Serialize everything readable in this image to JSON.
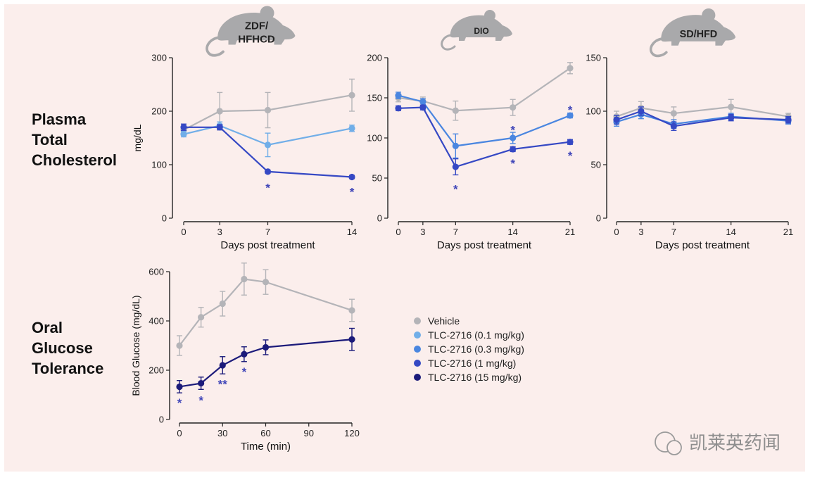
{
  "colors": {
    "vehicle": "#b4b4b8",
    "d01": "#71aee8",
    "d03": "#4a86e0",
    "d1": "#3548c4",
    "d15": "#1b1a7a",
    "star": "#3f45b8",
    "axis": "#222222",
    "mouse": "#a9a9ab",
    "background": "#fbeeec"
  },
  "row_labels": {
    "cholesterol": [
      "Plasma",
      "Total",
      "Cholesterol"
    ],
    "glucose": [
      "Oral",
      "Glucose",
      "Tolerance"
    ]
  },
  "mouse_icons": [
    {
      "label": "ZDF/\nHFHCD"
    },
    {
      "label": "DIO"
    },
    {
      "label": "SD/HFD"
    }
  ],
  "legend": [
    {
      "key": "vehicle",
      "label": "Vehicle"
    },
    {
      "key": "d01",
      "label": "TLC-2716 (0.1 mg/kg)"
    },
    {
      "key": "d03",
      "label": "TLC-2716 (0.3 mg/kg)"
    },
    {
      "key": "d1",
      "label": "TLC-2716 (1 mg/kg)"
    },
    {
      "key": "d15",
      "label": "TLC-2716 (15 mg/kg)"
    }
  ],
  "watermark": {
    "text": "凯莱英药闻"
  },
  "chart_data": [
    {
      "type": "line",
      "id": "zdf",
      "title": "ZDF/HFHCD",
      "xlabel": "Days post treatment",
      "ylabel": "mg/dL",
      "xlim": [
        0,
        14
      ],
      "ylim": [
        0,
        300
      ],
      "xticks": [
        0,
        3,
        7,
        14
      ],
      "yticks": [
        0,
        100,
        200,
        300
      ],
      "series": [
        {
          "key": "vehicle",
          "name": "Vehicle",
          "x": [
            0,
            3,
            7,
            14
          ],
          "y": [
            165,
            200,
            202,
            230
          ],
          "err": [
            10,
            35,
            33,
            30
          ]
        },
        {
          "key": "d01",
          "name": "TLC-2716 (0.1 mg/kg)",
          "x": [
            0,
            3,
            7,
            14
          ],
          "y": [
            157,
            173,
            137,
            168
          ],
          "err": [
            5,
            7,
            22,
            6
          ]
        },
        {
          "key": "d1",
          "name": "TLC-2716 (1 mg/kg)",
          "x": [
            0,
            3,
            7,
            14
          ],
          "y": [
            170,
            170,
            87,
            77
          ],
          "err": [
            6,
            5,
            3,
            3
          ]
        }
      ],
      "annotations": [
        {
          "x": 7,
          "y": 60,
          "text": "*"
        },
        {
          "x": 14,
          "y": 52,
          "text": "*"
        }
      ]
    },
    {
      "type": "line",
      "id": "dio",
      "title": "DIO",
      "xlabel": "Days post treatment",
      "ylabel": "",
      "xlim": [
        0,
        21
      ],
      "ylim": [
        0,
        200
      ],
      "xticks": [
        0,
        3,
        7,
        14,
        21
      ],
      "yticks": [
        0,
        50,
        100,
        150,
        200
      ],
      "series": [
        {
          "key": "vehicle",
          "name": "Vehicle",
          "x": [
            0,
            3,
            7,
            14,
            21
          ],
          "y": [
            150,
            146,
            134,
            138,
            187
          ],
          "err": [
            5,
            5,
            12,
            10,
            7
          ]
        },
        {
          "key": "d03",
          "name": "TLC-2716 (0.3 mg/kg)",
          "x": [
            0,
            3,
            7,
            14,
            21
          ],
          "y": [
            153,
            145,
            90,
            100,
            128
          ],
          "err": [
            4,
            4,
            15,
            7,
            3
          ]
        },
        {
          "key": "d1",
          "name": "TLC-2716 (1 mg/kg)",
          "x": [
            0,
            3,
            7,
            14,
            21
          ],
          "y": [
            137,
            138,
            64,
            86,
            95
          ],
          "err": [
            3,
            3,
            10,
            3,
            3
          ]
        }
      ],
      "annotations": [
        {
          "x": 7,
          "y": 38,
          "text": "*"
        },
        {
          "x": 14,
          "y": 112,
          "text": "*"
        },
        {
          "x": 14,
          "y": 70,
          "text": "*"
        },
        {
          "x": 21,
          "y": 137,
          "text": "*"
        },
        {
          "x": 21,
          "y": 80,
          "text": "*"
        }
      ]
    },
    {
      "type": "line",
      "id": "sd",
      "title": "SD/HFD",
      "xlabel": "Days post treatment",
      "ylabel": "",
      "xlim": [
        0,
        21
      ],
      "ylim": [
        0,
        150
      ],
      "xticks": [
        0,
        3,
        7,
        14,
        21
      ],
      "yticks": [
        0,
        50,
        100,
        150
      ],
      "series": [
        {
          "key": "vehicle",
          "name": "Vehicle",
          "x": [
            0,
            3,
            7,
            14,
            21
          ],
          "y": [
            95,
            103,
            98,
            104,
            95
          ],
          "err": [
            5,
            6,
            6,
            7,
            3
          ]
        },
        {
          "key": "d03",
          "name": "TLC-2716 (0.3 mg/kg)",
          "x": [
            0,
            3,
            7,
            14,
            21
          ],
          "y": [
            90,
            97,
            88,
            95,
            91
          ],
          "err": [
            4,
            4,
            4,
            3,
            3
          ]
        },
        {
          "key": "d1",
          "name": "TLC-2716 (1 mg/kg)",
          "x": [
            0,
            3,
            7,
            14,
            21
          ],
          "y": [
            92,
            100,
            86,
            94,
            92
          ],
          "err": [
            4,
            4,
            4,
            3,
            3
          ]
        }
      ],
      "annotations": []
    },
    {
      "type": "line",
      "id": "ogtt",
      "title": "Oral Glucose Tolerance",
      "xlabel": "Time (min)",
      "ylabel": "Blood Glucose (mg/dL)",
      "xlim": [
        0,
        120
      ],
      "ylim": [
        0,
        600
      ],
      "xticks": [
        0,
        30,
        60,
        90,
        120
      ],
      "yticks": [
        0,
        200,
        400,
        600
      ],
      "series": [
        {
          "key": "vehicle",
          "name": "Vehicle",
          "x": [
            0,
            15,
            30,
            45,
            60,
            120
          ],
          "y": [
            300,
            415,
            470,
            570,
            558,
            443
          ],
          "err": [
            40,
            40,
            50,
            65,
            50,
            45
          ]
        },
        {
          "key": "d15",
          "name": "TLC-2716 (15 mg/kg)",
          "x": [
            0,
            15,
            30,
            45,
            60,
            120
          ],
          "y": [
            133,
            147,
            220,
            265,
            293,
            325
          ],
          "err": [
            25,
            25,
            35,
            30,
            30,
            45
          ]
        }
      ],
      "annotations": [
        {
          "x": 0,
          "y": 75,
          "text": "*"
        },
        {
          "x": 15,
          "y": 85,
          "text": "*"
        },
        {
          "x": 30,
          "y": 150,
          "text": "**"
        },
        {
          "x": 45,
          "y": 200,
          "text": "*"
        }
      ]
    }
  ]
}
